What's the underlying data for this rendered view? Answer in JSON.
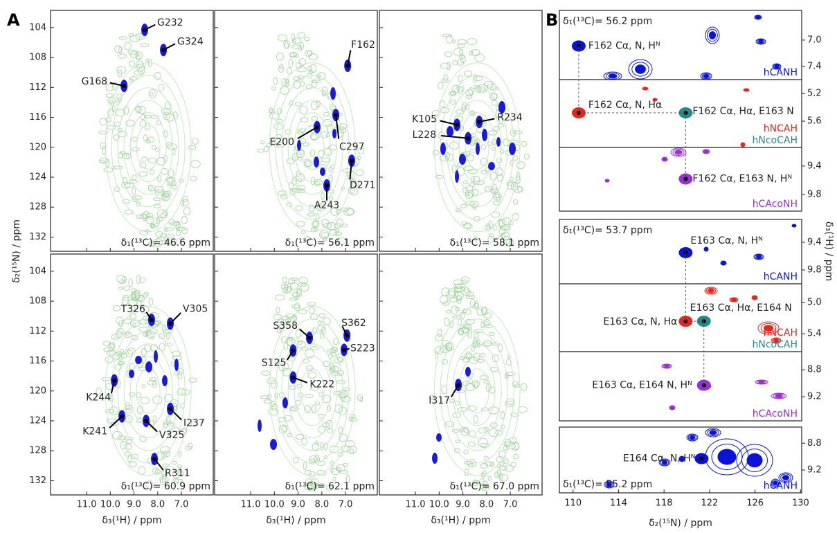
{
  "panel_a": {
    "letter": "A",
    "x_label": "δ₃(¹H) / ppm",
    "y_label": "δ₂(¹⁵N) / ppm",
    "xlim": [
      12.52,
      5.66
    ],
    "xticks": [
      {
        "value": 11,
        "label": "11.0"
      },
      {
        "value": 10,
        "label": "10.0"
      },
      {
        "value": 9,
        "label": "9.0"
      },
      {
        "value": 8,
        "label": "8.0"
      },
      {
        "value": 7,
        "label": "7.0"
      }
    ],
    "ylim": [
      101.7,
      133.9
    ],
    "yticks": [
      104,
      108,
      112,
      116,
      120,
      124,
      128,
      132
    ],
    "subplots": [
      {
        "carbon_label": "δ₁(¹³C)= 46.6 ppm",
        "peaks": [
          {
            "label": "G232",
            "x": 8.55,
            "y": 104.3
          },
          {
            "label": "G324",
            "x": 7.76,
            "y": 107.0
          },
          {
            "label": "G168",
            "x": 9.42,
            "y": 111.8
          }
        ]
      },
      {
        "carbon_label": "δ₁(¹³C)= 56.1 ppm",
        "peaks": [
          {
            "label": "F162",
            "x": 6.91,
            "y": 109.1
          },
          {
            "label": "E200",
            "x": 8.2,
            "y": 117.3
          },
          {
            "label": "C297",
            "x": 7.41,
            "y": 115.7
          },
          {
            "label": "D271",
            "x": 6.74,
            "y": 121.8
          },
          {
            "label": "A243",
            "x": 7.79,
            "y": 125.1
          }
        ]
      },
      {
        "carbon_label": "δ₁(¹³C)= 58.1 ppm",
        "peaks": [
          {
            "label": "K105",
            "x": 9.25,
            "y": 117.0
          },
          {
            "label": "R234",
            "x": 8.31,
            "y": 116.6
          },
          {
            "label": "L228",
            "x": 8.78,
            "y": 118.8
          }
        ]
      },
      {
        "carbon_label": "δ₁(¹³C)= 60.9 ppm",
        "peaks": [
          {
            "label": "T326",
            "x": 8.26,
            "y": 110.5
          },
          {
            "label": "V305",
            "x": 7.47,
            "y": 111.0
          },
          {
            "label": "K244",
            "x": 9.83,
            "y": 118.6
          },
          {
            "label": "K241",
            "x": 9.51,
            "y": 123.4
          },
          {
            "label": "I237",
            "x": 7.47,
            "y": 122.4
          },
          {
            "label": "V325",
            "x": 8.49,
            "y": 124.0
          },
          {
            "label": "R311",
            "x": 8.14,
            "y": 129.1
          }
        ]
      },
      {
        "carbon_label": "δ₁(¹³C)= 62.1 ppm",
        "peaks": [
          {
            "label": "S358",
            "x": 8.52,
            "y": 112.9
          },
          {
            "label": "S362",
            "x": 6.94,
            "y": 112.6
          },
          {
            "label": "S223",
            "x": 7.06,
            "y": 114.5
          },
          {
            "label": "S125",
            "x": 9.21,
            "y": 114.6
          },
          {
            "label": "K222",
            "x": 9.21,
            "y": 118.2
          }
        ]
      },
      {
        "carbon_label": "δ₁(¹³C)= 67.0 ppm",
        "peaks": [
          {
            "label": "I317",
            "x": 9.19,
            "y": 119.2
          }
        ]
      }
    ]
  },
  "panel_b": {
    "letter": "B",
    "x_label": "δ₂(¹⁵N) / ppm",
    "y_label": "δ₃(¹H) / ppm",
    "xlim": [
      108.8,
      130.1
    ],
    "xticks": [
      110,
      114,
      118,
      122,
      126,
      130
    ],
    "groups": [
      {
        "carbon_label": "δ₁(¹³C)= 56.2 ppm",
        "strips": [
          {
            "ylim": [
              6.55,
              7.6
            ],
            "yticks": [
              {
                "value": 7,
                "label": "7.0"
              },
              7.4
            ],
            "spectra": [
              {
                "name": "hCANH",
                "color": "#0a14d8",
                "peaks": [
                  {
                    "label": "F162 Cα, N, Hᴺ",
                    "x": 110.5,
                    "y": 7.09
                  }
                ]
              }
            ]
          },
          {
            "ylim": [
              5.0,
              5.98
            ],
            "yticks": [
              5.2,
              5.6
            ],
            "spectra": [
              {
                "name": "hNCAH",
                "color": "#e8241c",
                "peaks": [
                  {
                    "label": "F162 Cα, N, Hα",
                    "x": 110.5,
                    "y": 5.48
                  }
                ]
              },
              {
                "name": "hNcoCAH",
                "color": "#1f8c8a",
                "peaks": [
                  {
                    "label": "F162 Cα, Hα, E163 N",
                    "x": 119.9,
                    "y": 5.48
                  }
                ]
              }
            ]
          },
          {
            "ylim": [
              9.14,
              10.03
            ],
            "yticks": [
              9.4,
              9.8
            ],
            "spectra": [
              {
                "name": "hCAcoNH",
                "color": "#9a2fd6",
                "peaks": [
                  {
                    "label": "F162 Cα, E163 N, Hᴺ",
                    "x": 119.9,
                    "y": 9.58
                  }
                ]
              }
            ]
          }
        ]
      },
      {
        "carbon_label": "δ₁(¹³C)= 53.7 ppm",
        "strips": [
          {
            "ylim": [
              9.07,
              10.0
            ],
            "yticks": [
              9.4,
              9.8
            ],
            "spectra": [
              {
                "name": "hCANH",
                "color": "#0a14d8",
                "peaks": [
                  {
                    "label": "E163 Cα, N, Hᴺ",
                    "x": 119.9,
                    "y": 9.55
                  }
                ]
              }
            ]
          },
          {
            "ylim": [
              4.76,
              5.63
            ],
            "yticks": [
              {
                "value": 5,
                "label": "5.0"
              },
              5.4
            ],
            "spectra": [
              {
                "name": "hNCAH",
                "color": "#e8241c",
                "peaks": [
                  {
                    "label": "E163 Cα, N, Hα",
                    "x": 119.9,
                    "y": 5.24
                  }
                ]
              },
              {
                "name": "hNcoCAH",
                "color": "#1f8c8a",
                "peaks": [
                  {
                    "label": "E163 Cα, Hα, E164 N",
                    "x": 121.5,
                    "y": 5.24
                  }
                ]
              }
            ]
          },
          {
            "ylim": [
              8.53,
              9.56
            ],
            "yticks": [
              8.8,
              9.2
            ],
            "spectra": [
              {
                "name": "hCAcoNH",
                "color": "#9a2fd6",
                "peaks": [
                  {
                    "label": "E163 Cα, E164 N, Hᴺ",
                    "x": 121.5,
                    "y": 9.03
                  }
                ]
              }
            ]
          }
        ]
      },
      {
        "carbon_label": "δ₁(¹³C)= 55.2 ppm",
        "strips": [
          {
            "ylim": [
              8.56,
              9.54
            ],
            "yticks": [
              8.8,
              9.2
            ],
            "spectra": [
              {
                "name": "hCANH",
                "color": "#0a14d8",
                "peaks": [
                  {
                    "label": "E164 Cα, N, Hᴺ",
                    "x": 121.3,
                    "y": 9.03
                  }
                ]
              }
            ]
          }
        ]
      }
    ]
  }
}
